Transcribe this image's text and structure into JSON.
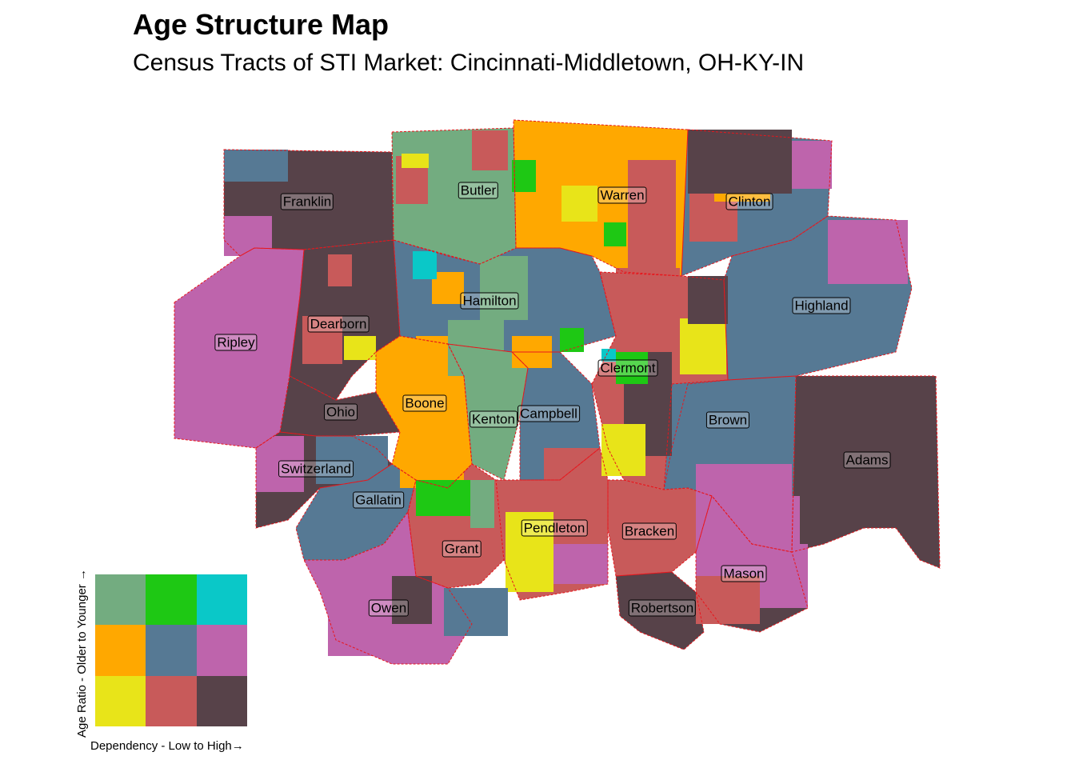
{
  "title": "Age Structure Map",
  "subtitle": "Census Tracts of STI Market: Cincinnati-Middletown, OH-KY-IN",
  "colors": {
    "low_dep_young": "#73ac80",
    "mid_dep_young": "#1ec814",
    "high_dep_young": "#0ac8c8",
    "low_dep_mid": "#ffa800",
    "mid_dep_mid": "#567994",
    "high_dep_mid": "#be64ac",
    "low_dep_old": "#e8e419",
    "mid_dep_old": "#c85a5a",
    "high_dep_old": "#574249",
    "border": "#e8161c"
  },
  "counties": [
    {
      "name": "Franklin",
      "color": "#574249"
    },
    {
      "name": "Butler",
      "color": "#73ac80"
    },
    {
      "name": "Warren",
      "color": "#ffa800"
    },
    {
      "name": "Clinton",
      "color": "#567994"
    },
    {
      "name": "Ripley",
      "color": "#be64ac"
    },
    {
      "name": "Dearborn",
      "color": "#574249"
    },
    {
      "name": "Hamilton",
      "color": "#567994"
    },
    {
      "name": "Highland",
      "color": "#567994"
    },
    {
      "name": "Clermont",
      "color": "#c85a5a"
    },
    {
      "name": "Ohio",
      "color": "#574249"
    },
    {
      "name": "Boone",
      "color": "#ffa800"
    },
    {
      "name": "Kenton",
      "color": "#73ac80"
    },
    {
      "name": "Campbell",
      "color": "#567994"
    },
    {
      "name": "Brown",
      "color": "#567994"
    },
    {
      "name": "Switzerland",
      "color": "#574249"
    },
    {
      "name": "Adams",
      "color": "#574249"
    },
    {
      "name": "Gallatin",
      "color": "#567994"
    },
    {
      "name": "Pendleton",
      "color": "#c85a5a"
    },
    {
      "name": "Bracken",
      "color": "#c85a5a"
    },
    {
      "name": "Grant",
      "color": "#c85a5a"
    },
    {
      "name": "Mason",
      "color": "#574249"
    },
    {
      "name": "Owen",
      "color": "#be64ac"
    },
    {
      "name": "Robertson",
      "color": "#574249"
    }
  ],
  "legend": {
    "x_label": "Dependency - Low to High→",
    "y_label": "Age Ratio - Older to Younger →",
    "grid_rows_top_to_bottom": [
      [
        "#73ac80",
        "#1ec814",
        "#0ac8c8"
      ],
      [
        "#ffa800",
        "#567994",
        "#be64ac"
      ],
      [
        "#e8e419",
        "#c85a5a",
        "#574249"
      ]
    ]
  }
}
